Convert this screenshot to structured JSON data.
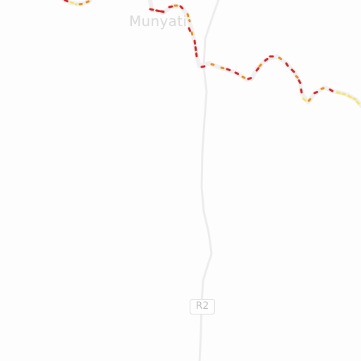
{
  "map": {
    "place_label": "Munyati",
    "road_shield": "R2",
    "colors": {
      "background": "#fdfdfd",
      "road": "#ececec",
      "river_casing": "#f0f0f0",
      "traffic_heavy": "#d21f1f",
      "traffic_moderate": "#f08a12",
      "traffic_light": "#f6e56a",
      "label": "#d9d9d9"
    }
  }
}
